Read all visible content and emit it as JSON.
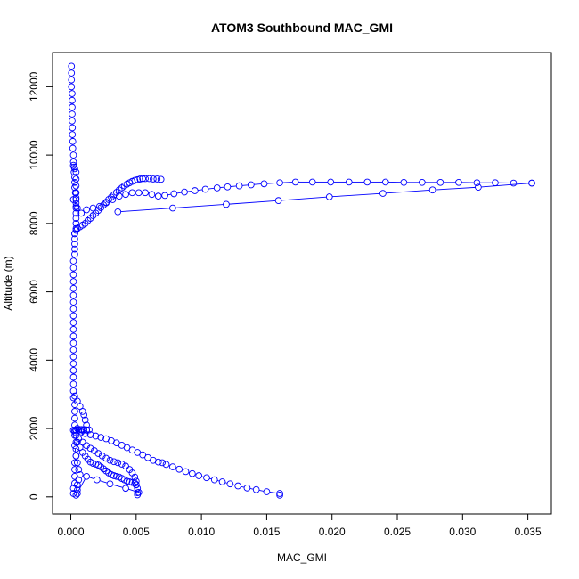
{
  "chart_data": {
    "type": "scatter",
    "title": "ATOM3 Southbound MAC_GMI",
    "xlabel": "MAC_GMI",
    "ylabel": "Altitude (m)",
    "xlim": [
      -0.0014,
      0.0368
    ],
    "ylim": [
      -500,
      13000
    ],
    "xticks": [
      0.0,
      0.005,
      0.01,
      0.015,
      0.02,
      0.025,
      0.03,
      0.035
    ],
    "xtick_labels": [
      "0.000",
      "0.005",
      "0.010",
      "0.015",
      "0.020",
      "0.025",
      "0.030",
      "0.035"
    ],
    "yticks": [
      0,
      2000,
      4000,
      6000,
      8000,
      10000,
      12000
    ],
    "ytick_labels": [
      "0",
      "2000",
      "4000",
      "6000",
      "8000",
      "10000",
      "12000"
    ],
    "grid": false,
    "legend": "none",
    "marker": "open-circle",
    "connected": true,
    "color": "#0000ff",
    "series": [
      {
        "points": [
          [
            5e-05,
            12600
          ],
          [
            5e-05,
            12400
          ],
          [
            5e-05,
            12200
          ],
          [
            5e-05,
            12000
          ],
          [
            0.0001,
            11800
          ],
          [
            0.0001,
            11600
          ],
          [
            0.0001,
            11400
          ],
          [
            0.0001,
            11200
          ],
          [
            0.0001,
            11000
          ],
          [
            0.00012,
            10800
          ],
          [
            0.00012,
            10600
          ],
          [
            0.00015,
            10400
          ],
          [
            0.00015,
            10200
          ],
          [
            0.0002,
            10000
          ],
          [
            0.0002,
            9800
          ],
          [
            0.00025,
            9650
          ],
          [
            0.00025,
            9500
          ],
          [
            0.0003,
            9350
          ],
          [
            0.0003,
            9200
          ],
          [
            0.0003,
            9050
          ],
          [
            0.00035,
            8900
          ],
          [
            0.0004,
            8750
          ],
          [
            0.0004,
            8600
          ],
          [
            0.0004,
            8450
          ],
          [
            0.0004,
            8300
          ],
          [
            0.0004,
            8150
          ],
          [
            0.0004,
            8000
          ],
          [
            0.0004,
            7850
          ],
          [
            0.0003,
            7700
          ],
          [
            0.0003,
            7550
          ],
          [
            0.0003,
            7400
          ],
          [
            0.0003,
            7250
          ],
          [
            0.0003,
            7100
          ],
          [
            0.0002,
            6900
          ],
          [
            0.0002,
            6700
          ],
          [
            0.0002,
            6500
          ],
          [
            0.0002,
            6300
          ],
          [
            0.0002,
            6100
          ],
          [
            0.0002,
            5900
          ],
          [
            0.0002,
            5700
          ],
          [
            0.0002,
            5500
          ],
          [
            0.0002,
            5300
          ],
          [
            0.0002,
            5100
          ],
          [
            0.0002,
            4900
          ],
          [
            0.0002,
            4700
          ],
          [
            0.0002,
            4500
          ],
          [
            0.0002,
            4300
          ],
          [
            0.0002,
            4100
          ],
          [
            0.0002,
            3900
          ],
          [
            0.0002,
            3700
          ],
          [
            0.0002,
            3500
          ],
          [
            0.0002,
            3300
          ],
          [
            0.0002,
            3100
          ],
          [
            0.0002,
            2900
          ],
          [
            0.0003,
            2700
          ],
          [
            0.0003,
            2500
          ],
          [
            0.0003,
            2300
          ],
          [
            0.0003,
            2100
          ],
          [
            0.0003,
            1950
          ],
          [
            0.0004,
            1800
          ],
          [
            0.0004,
            1600
          ],
          [
            0.0004,
            1400
          ],
          [
            0.0004,
            1200
          ],
          [
            0.0003,
            1000
          ],
          [
            0.0003,
            800
          ],
          [
            0.0003,
            600
          ],
          [
            0.0003,
            400
          ],
          [
            0.0002,
            250
          ],
          [
            0.0002,
            100
          ]
        ]
      },
      {
        "points": [
          [
            0.0003,
            2950
          ],
          [
            0.0005,
            2800
          ],
          [
            0.0007,
            2650
          ],
          [
            0.0009,
            2500
          ],
          [
            0.001,
            2400
          ],
          [
            0.0011,
            2250
          ],
          [
            0.0012,
            2100
          ],
          [
            0.0012,
            1950
          ],
          [
            0.0009,
            1950
          ],
          [
            0.0006,
            1950
          ],
          [
            0.0004,
            1950
          ]
        ]
      },
      {
        "points": [
          [
            0.0003,
            7700
          ],
          [
            0.0004,
            7800
          ],
          [
            0.0005,
            7850
          ],
          [
            0.0007,
            7900
          ],
          [
            0.0009,
            7950
          ],
          [
            0.0011,
            8000
          ],
          [
            0.0013,
            8080
          ],
          [
            0.0015,
            8150
          ],
          [
            0.0017,
            8230
          ],
          [
            0.0019,
            8300
          ],
          [
            0.0021,
            8380
          ],
          [
            0.0023,
            8460
          ],
          [
            0.0025,
            8540
          ],
          [
            0.0027,
            8620
          ],
          [
            0.0029,
            8700
          ],
          [
            0.0031,
            8770
          ],
          [
            0.0033,
            8840
          ],
          [
            0.0035,
            8910
          ],
          [
            0.0037,
            8980
          ],
          [
            0.0039,
            9040
          ],
          [
            0.0041,
            9100
          ],
          [
            0.0043,
            9150
          ],
          [
            0.0045,
            9190
          ],
          [
            0.0047,
            9230
          ],
          [
            0.0049,
            9260
          ],
          [
            0.0051,
            9280
          ],
          [
            0.0053,
            9300
          ],
          [
            0.0055,
            9310
          ],
          [
            0.0057,
            9310
          ],
          [
            0.006,
            9310
          ],
          [
            0.0063,
            9300
          ],
          [
            0.0066,
            9300
          ],
          [
            0.0069,
            9290
          ]
        ]
      },
      {
        "points": [
          [
            0.0002,
            8700
          ],
          [
            0.0005,
            8450
          ],
          [
            0.0008,
            8300
          ],
          [
            0.0012,
            8400
          ],
          [
            0.0017,
            8450
          ],
          [
            0.0022,
            8500
          ],
          [
            0.0027,
            8600
          ],
          [
            0.0032,
            8700
          ],
          [
            0.0037,
            8800
          ],
          [
            0.0042,
            8850
          ],
          [
            0.0047,
            8900
          ],
          [
            0.0052,
            8900
          ],
          [
            0.0057,
            8900
          ],
          [
            0.0062,
            8850
          ],
          [
            0.0067,
            8800
          ],
          [
            0.0072,
            8820
          ],
          [
            0.0079,
            8870
          ],
          [
            0.0087,
            8920
          ],
          [
            0.0095,
            8960
          ],
          [
            0.0103,
            9000
          ],
          [
            0.0112,
            9040
          ],
          [
            0.012,
            9070
          ],
          [
            0.0129,
            9100
          ],
          [
            0.0138,
            9130
          ],
          [
            0.0148,
            9160
          ],
          [
            0.016,
            9190
          ],
          [
            0.0172,
            9210
          ],
          [
            0.0185,
            9210
          ],
          [
            0.0199,
            9210
          ],
          [
            0.0213,
            9210
          ],
          [
            0.0227,
            9210
          ],
          [
            0.0241,
            9210
          ],
          [
            0.0255,
            9200
          ],
          [
            0.0269,
            9200
          ],
          [
            0.0283,
            9200
          ],
          [
            0.0297,
            9200
          ],
          [
            0.0311,
            9190
          ],
          [
            0.0325,
            9190
          ],
          [
            0.0339,
            9180
          ],
          [
            0.0353,
            9180
          ]
        ]
      },
      {
        "points": [
          [
            0.0353,
            9180
          ],
          [
            0.0312,
            9060
          ],
          [
            0.0277,
            8980
          ],
          [
            0.0239,
            8880
          ],
          [
            0.0198,
            8780
          ],
          [
            0.0159,
            8670
          ],
          [
            0.0119,
            8560
          ],
          [
            0.0078,
            8450
          ],
          [
            0.0036,
            8340
          ]
        ]
      },
      {
        "points": [
          [
            0.0005,
            2000
          ],
          [
            0.0008,
            1900
          ],
          [
            0.0011,
            1850
          ],
          [
            0.0015,
            1820
          ],
          [
            0.0019,
            1780
          ],
          [
            0.0023,
            1740
          ],
          [
            0.0027,
            1700
          ],
          [
            0.0031,
            1640
          ],
          [
            0.0035,
            1580
          ],
          [
            0.0039,
            1510
          ],
          [
            0.0043,
            1440
          ],
          [
            0.0047,
            1370
          ],
          [
            0.0051,
            1300
          ],
          [
            0.0055,
            1230
          ],
          [
            0.0059,
            1150
          ],
          [
            0.0063,
            1070
          ],
          [
            0.0067,
            1020
          ],
          [
            0.007,
            1000
          ],
          [
            0.0073,
            950
          ],
          [
            0.0078,
            880
          ],
          [
            0.0083,
            810
          ],
          [
            0.0088,
            740
          ],
          [
            0.0093,
            680
          ],
          [
            0.0098,
            620
          ],
          [
            0.0104,
            560
          ],
          [
            0.011,
            500
          ],
          [
            0.0116,
            440
          ],
          [
            0.0122,
            380
          ],
          [
            0.0128,
            320
          ],
          [
            0.0135,
            260
          ],
          [
            0.0142,
            210
          ],
          [
            0.015,
            150
          ],
          [
            0.016,
            100
          ],
          [
            0.016,
            50
          ]
        ]
      },
      {
        "points": [
          [
            0.0003,
            1900
          ],
          [
            0.0006,
            1700
          ],
          [
            0.0009,
            1600
          ],
          [
            0.0012,
            1500
          ],
          [
            0.0015,
            1420
          ],
          [
            0.0018,
            1350
          ],
          [
            0.0021,
            1270
          ],
          [
            0.0024,
            1200
          ],
          [
            0.0027,
            1130
          ],
          [
            0.003,
            1070
          ],
          [
            0.0033,
            1030
          ],
          [
            0.0036,
            1000
          ],
          [
            0.0039,
            960
          ],
          [
            0.0042,
            900
          ],
          [
            0.0045,
            800
          ],
          [
            0.0047,
            700
          ],
          [
            0.0049,
            580
          ],
          [
            0.005,
            460
          ],
          [
            0.005,
            350
          ],
          [
            0.0051,
            250
          ],
          [
            0.0051,
            120
          ],
          [
            0.0051,
            60
          ]
        ]
      },
      {
        "points": [
          [
            0.0003,
            1800
          ],
          [
            0.0005,
            1600
          ],
          [
            0.0007,
            1450
          ],
          [
            0.0009,
            1300
          ],
          [
            0.0011,
            1200
          ],
          [
            0.0013,
            1100
          ],
          [
            0.0015,
            1020
          ],
          [
            0.0017,
            980
          ],
          [
            0.0019,
            960
          ],
          [
            0.0021,
            930
          ],
          [
            0.0023,
            880
          ],
          [
            0.0025,
            820
          ],
          [
            0.0027,
            760
          ],
          [
            0.0029,
            700
          ],
          [
            0.0031,
            650
          ],
          [
            0.0033,
            620
          ],
          [
            0.0035,
            600
          ],
          [
            0.0037,
            580
          ],
          [
            0.0039,
            540
          ],
          [
            0.0041,
            500
          ],
          [
            0.0043,
            460
          ],
          [
            0.0045,
            440
          ],
          [
            0.0047,
            420
          ],
          [
            0.0049,
            400
          ],
          [
            0.005,
            360
          ]
        ]
      },
      {
        "points": [
          [
            0.0003,
            1500
          ],
          [
            0.0004,
            1200
          ],
          [
            0.0005,
            1000
          ],
          [
            0.0006,
            800
          ],
          [
            0.0007,
            650
          ],
          [
            0.0006,
            500
          ],
          [
            0.0005,
            350
          ],
          [
            0.0005,
            200
          ],
          [
            0.0005,
            100
          ],
          [
            0.0004,
            50
          ],
          [
            0.0012,
            600
          ],
          [
            0.002,
            500
          ],
          [
            0.003,
            380
          ],
          [
            0.0042,
            250
          ],
          [
            0.0052,
            130
          ]
        ]
      },
      {
        "points": [
          [
            0.0002,
            1950
          ],
          [
            0.0004,
            1960
          ],
          [
            0.0006,
            1960
          ],
          [
            0.0008,
            1970
          ],
          [
            0.001,
            1970
          ],
          [
            0.0012,
            1960
          ],
          [
            0.0014,
            1960
          ]
        ]
      },
      {
        "points": [
          [
            0.0002,
            9700
          ],
          [
            0.0003,
            9600
          ],
          [
            0.0004,
            9500
          ],
          [
            0.0004,
            9300
          ],
          [
            0.0004,
            9100
          ],
          [
            0.0004,
            8900
          ],
          [
            0.0004,
            8700
          ],
          [
            0.0004,
            8500
          ]
        ]
      }
    ]
  }
}
